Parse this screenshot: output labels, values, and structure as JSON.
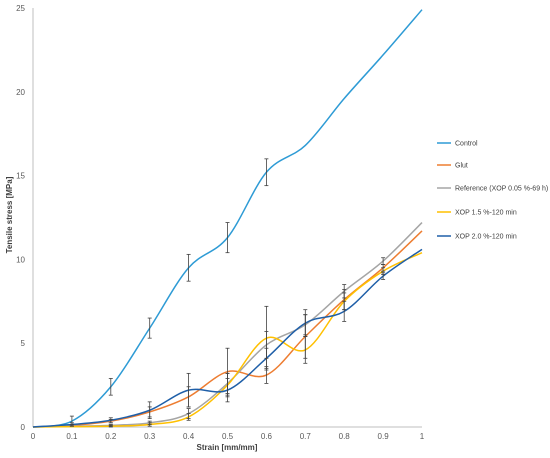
{
  "chart_data": {
    "type": "line",
    "xlabel": "Strain [mm/mm]",
    "ylabel": "Tensile stress [MPa]",
    "xlim": [
      0,
      1
    ],
    "ylim": [
      0,
      25
    ],
    "xticks": [
      "0",
      "0.1",
      "0.2",
      "0.3",
      "0.4",
      "0.5",
      "0.6",
      "0.7",
      "0.8",
      "0.9",
      "1"
    ],
    "yticks": [
      "0",
      "5",
      "10",
      "15",
      "20",
      "25"
    ],
    "grid": false,
    "legend_position": "right",
    "series": [
      {
        "name": "Control",
        "color": "#2E9BD5",
        "x": [
          0,
          0.1,
          0.2,
          0.3,
          0.4,
          0.5,
          0.6,
          0.7,
          0.8,
          0.9,
          1.0
        ],
        "y": [
          0,
          0.35,
          2.4,
          5.9,
          9.5,
          11.3,
          15.2,
          16.8,
          19.6,
          22.2,
          24.9
        ],
        "err": [
          0,
          0.3,
          0.5,
          0.6,
          0.8,
          0.9,
          0.8,
          0,
          0,
          0,
          0
        ]
      },
      {
        "name": "Glut",
        "color": "#ED7D31",
        "x": [
          0,
          0.1,
          0.2,
          0.3,
          0.4,
          0.5,
          0.6,
          0.7,
          0.8,
          0.9,
          1.0
        ],
        "y": [
          0,
          0.1,
          0.35,
          0.9,
          1.8,
          3.3,
          3.1,
          5.4,
          7.6,
          9.5,
          11.7
        ],
        "err": [
          0,
          0.05,
          0.1,
          0.3,
          0.6,
          1.4,
          0.5,
          1.3,
          0.6,
          0.2,
          0
        ]
      },
      {
        "name": "Reference (XOP 0.05 %-69 h)",
        "color": "#A5A5A5",
        "x": [
          0,
          0.1,
          0.2,
          0.3,
          0.4,
          0.5,
          0.6,
          0.7,
          0.8,
          0.9,
          1.0
        ],
        "y": [
          0,
          0.05,
          0.1,
          0.25,
          0.8,
          2.6,
          4.9,
          6.1,
          8.1,
          9.9,
          12.2
        ],
        "err": [
          0,
          0,
          0.05,
          0.1,
          0.3,
          0.6,
          0.8,
          0.6,
          0.4,
          0.2,
          0
        ]
      },
      {
        "name": "XOP 1.5 %-120 min",
        "color": "#FFC000",
        "x": [
          0,
          0.1,
          0.2,
          0.3,
          0.4,
          0.5,
          0.6,
          0.7,
          0.8,
          0.9,
          1.0
        ],
        "y": [
          0,
          0.02,
          0.05,
          0.15,
          0.6,
          2.5,
          5.3,
          4.6,
          7.5,
          9.3,
          10.4
        ],
        "err": [
          0,
          0,
          0.05,
          0.1,
          0.2,
          0.7,
          1.9,
          0.8,
          0.5,
          0.2,
          0
        ]
      },
      {
        "name": "XOP 2.0 %-120 min",
        "color": "#1F5FA8",
        "x": [
          0,
          0.1,
          0.2,
          0.3,
          0.4,
          0.5,
          0.6,
          0.7,
          0.8,
          0.9,
          1.0
        ],
        "y": [
          0,
          0.15,
          0.4,
          1.0,
          2.2,
          2.2,
          4.1,
          6.2,
          6.9,
          9.0,
          10.6
        ],
        "err": [
          0,
          0.1,
          0.15,
          0.5,
          1.0,
          0.7,
          0.6,
          0.8,
          0.6,
          0.2,
          0
        ]
      }
    ]
  }
}
